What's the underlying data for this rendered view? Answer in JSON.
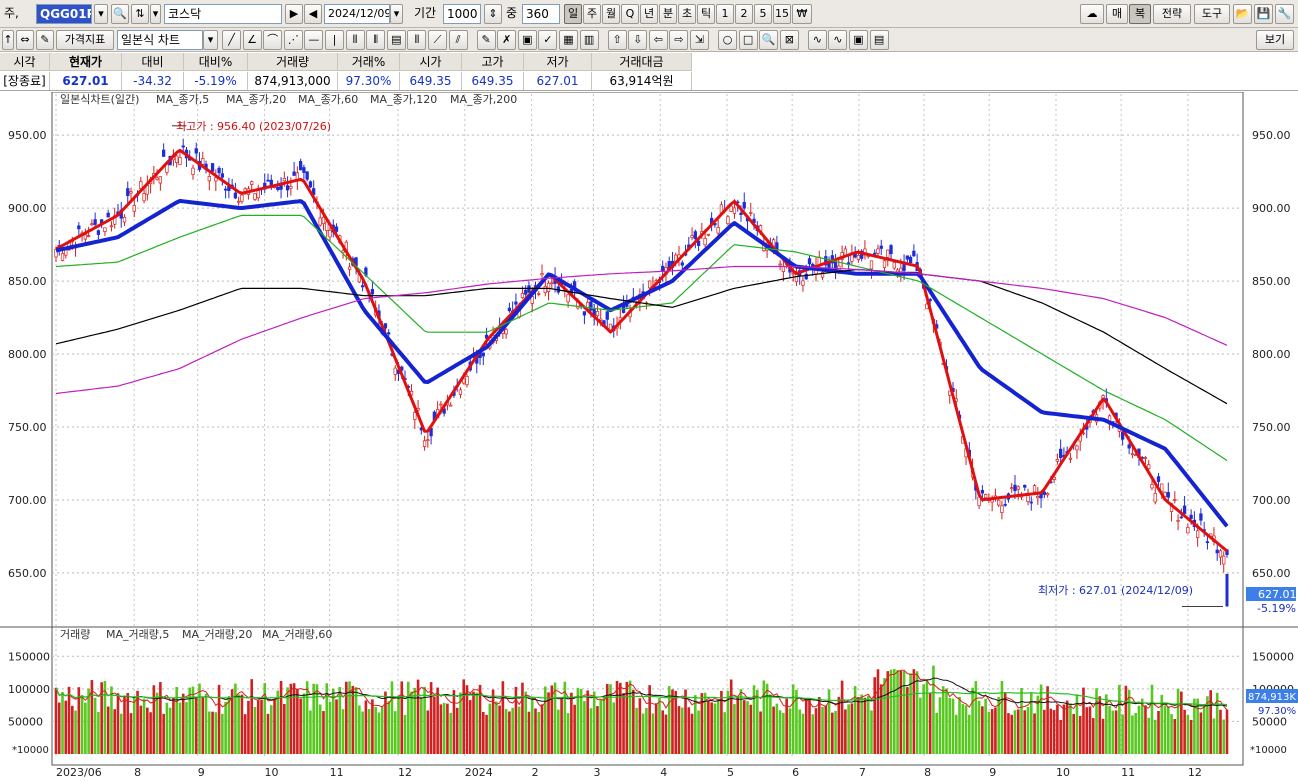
{
  "toolbar1": {
    "type_label": "주,",
    "code": "QGG01P",
    "name": "코스닥",
    "date": "2024/12/09",
    "period_label": "기간",
    "period_value": "1000",
    "count_label": "중",
    "count_value": "360",
    "periods": [
      "일",
      "주",
      "월",
      "Q",
      "년",
      "분",
      "초",
      "틱",
      "1",
      "2",
      "5",
      "15"
    ],
    "right": [
      "매",
      "복",
      "전략",
      "도구"
    ]
  },
  "toolbar2": {
    "indicator_btn": "가격지표",
    "chart_type": "일본식 차트",
    "view_btn": "보기"
  },
  "quote": {
    "headers": [
      "시각",
      "현재가",
      "대비",
      "대비%",
      "거래량",
      "거래%",
      "시가",
      "고가",
      "저가",
      "거래대금"
    ],
    "values": [
      "[장종료]",
      "627.01",
      "-34.32",
      "-5.19%",
      "874,913,000",
      "97.30%",
      "649.35",
      "649.35",
      "627.01",
      "63,914억원"
    ]
  },
  "price_panel": {
    "legend": [
      "일본식차트(일간)",
      "MA_종가,5",
      "MA_종가,20",
      "MA_종가,60",
      "MA_종가,120",
      "MA_종가,200"
    ],
    "high_note": "최고가 : 956.40 (2023/07/26)",
    "low_note": "최저가 : 627.01 (2024/12/09)",
    "last_price": "627.01",
    "last_change": "-5.19%",
    "y_ticks": [
      "950.00",
      "900.00",
      "850.00",
      "800.00",
      "750.00",
      "700.00",
      "650.00"
    ]
  },
  "volume_panel": {
    "legend": [
      "거래량",
      "MA_거래량,5",
      "MA_거래량,20",
      "MA_거래량,60"
    ],
    "y_ticks": [
      "150000",
      "100000",
      "50000"
    ],
    "multiplier": "*10000",
    "last_volume": "874,913K",
    "last_pct": "97.30%"
  },
  "x_labels": [
    "2023/06",
    "8",
    "9",
    "10",
    "11",
    "12",
    "2024",
    "2",
    "3",
    "4",
    "5",
    "6",
    "7",
    "8",
    "9",
    "10",
    "11",
    "12"
  ],
  "colors": {
    "up": "#d81e1e",
    "down": "#1f2dd8",
    "ma5": "#e01010",
    "ma20": "#1424d0",
    "ma60": "#20b020",
    "ma120": "#000000",
    "ma200": "#c020c0",
    "vol_up": "#d02020",
    "vol_down": "#58c820"
  },
  "chart_data": {
    "type": "line",
    "x": [
      "2023/06",
      "2023/07",
      "2023/07/26",
      "2023/08",
      "2023/09",
      "2023/10",
      "2023/11",
      "2023/12",
      "2024/01",
      "2024/02",
      "2024/03",
      "2024/04",
      "2024/05",
      "2024/06",
      "2024/07",
      "2024/08",
      "2024/09",
      "2024/10",
      "2024/11",
      "2024/12/09"
    ],
    "series": [
      {
        "name": "MA_종가,5",
        "values": [
          872,
          895,
          940,
          910,
          920,
          850,
          745,
          810,
          855,
          815,
          860,
          905,
          855,
          870,
          860,
          700,
          705,
          770,
          700,
          665
        ]
      },
      {
        "name": "MA_종가,20",
        "values": [
          871,
          880,
          905,
          900,
          905,
          830,
          780,
          805,
          855,
          830,
          850,
          890,
          860,
          855,
          855,
          790,
          760,
          755,
          735,
          682
        ]
      },
      {
        "name": "MA_종가,60",
        "values": [
          860,
          863,
          880,
          895,
          895,
          855,
          815,
          815,
          835,
          830,
          835,
          875,
          870,
          860,
          850,
          825,
          800,
          775,
          755,
          727
        ]
      },
      {
        "name": "MA_종가,120",
        "values": [
          807,
          817,
          830,
          845,
          845,
          840,
          840,
          845,
          845,
          838,
          832,
          845,
          853,
          858,
          855,
          850,
          835,
          815,
          790,
          766
        ]
      },
      {
        "name": "MA_종가,200",
        "values": [
          773,
          778,
          790,
          810,
          825,
          838,
          842,
          848,
          852,
          855,
          857,
          860,
          860,
          858,
          855,
          850,
          845,
          838,
          825,
          806
        ]
      }
    ],
    "high": 956.4,
    "low": 627.01,
    "ylim": [
      615,
      970
    ],
    "volume_ylim": [
      0,
      175000
    ]
  }
}
